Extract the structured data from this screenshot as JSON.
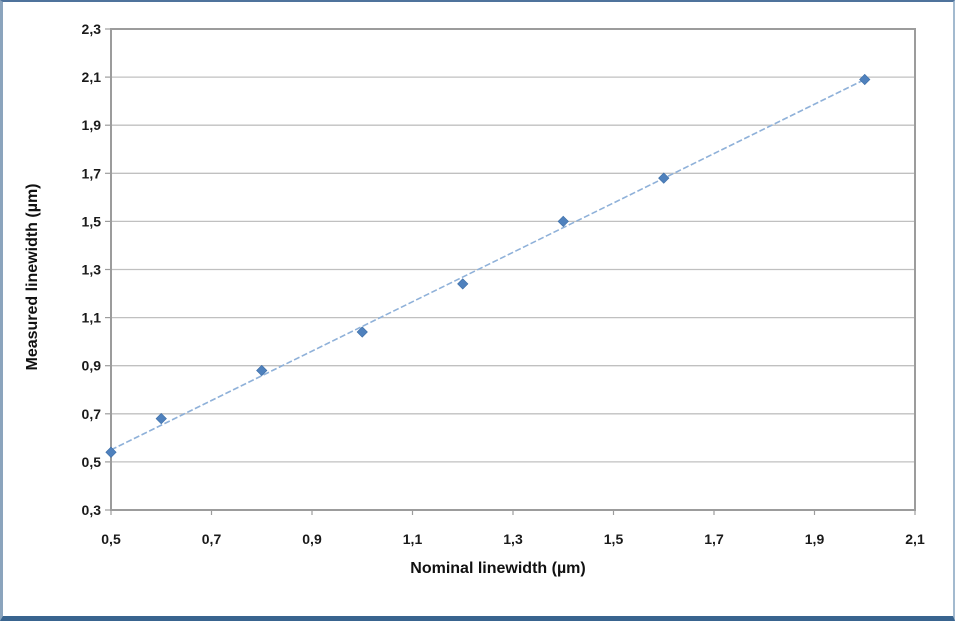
{
  "chart_data": {
    "type": "scatter",
    "title": "",
    "xlabel": "Nominal linewidth (µm)",
    "ylabel": "Measured linewidth  (µm)",
    "x": [
      0.5,
      0.6,
      0.8,
      1.0,
      1.2,
      1.4,
      1.6,
      2.0
    ],
    "y": [
      0.54,
      0.68,
      0.88,
      1.04,
      1.24,
      1.5,
      1.68,
      2.09
    ],
    "trendline": {
      "x1": 0.5,
      "y1": 0.55,
      "x2": 2.0,
      "y2": 2.09
    },
    "xlim": [
      0.5,
      2.1
    ],
    "ylim": [
      0.3,
      2.3
    ],
    "x_ticks": [
      0.5,
      0.7,
      0.9,
      1.1,
      1.3,
      1.5,
      1.7,
      1.9,
      2.1
    ],
    "x_tick_labels": [
      "0,5",
      "0,7",
      "0,9",
      "1,1",
      "1,3",
      "1,5",
      "1,7",
      "1,9",
      "2,1"
    ],
    "y_ticks": [
      0.3,
      0.5,
      0.7,
      0.9,
      1.1,
      1.3,
      1.5,
      1.7,
      1.9,
      2.1,
      2.3
    ],
    "y_tick_labels": [
      "0,3",
      "0,5",
      "0,7",
      "0,9",
      "1,1",
      "1,3",
      "1,5",
      "1,7",
      "1,9",
      "2,1",
      "2,3"
    ],
    "grid": "horizontal",
    "legend": "none",
    "marker": "diamond",
    "colors": {
      "marker": "#4f81bd",
      "marker_edge": "#3d6ea6",
      "trendline": "#8fb1d9",
      "gridline": "#c0c0c0",
      "plot_border": "#9c9c9c",
      "tick": "#9c9c9c",
      "text": "#1a1a1a"
    }
  }
}
